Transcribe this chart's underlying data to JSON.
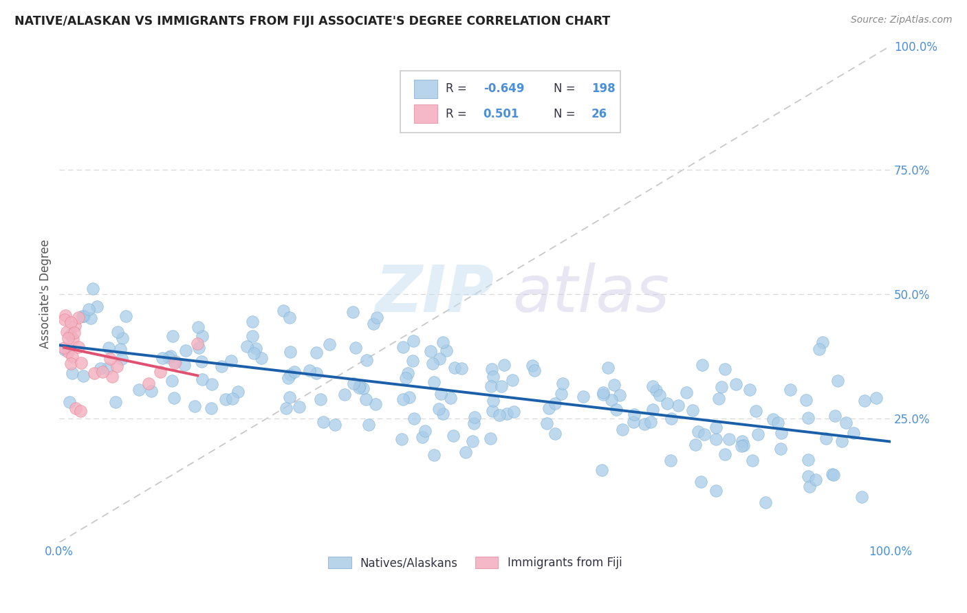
{
  "title": "NATIVE/ALASKAN VS IMMIGRANTS FROM FIJI ASSOCIATE'S DEGREE CORRELATION CHART",
  "source": "Source: ZipAtlas.com",
  "ylabel": "Associate's Degree",
  "legend_blue_r": "-0.649",
  "legend_blue_n": "198",
  "legend_pink_r": "0.501",
  "legend_pink_n": "26",
  "blue_color": "#a8cce8",
  "blue_color_edge": "#7aafd4",
  "blue_line_color": "#1a5fa8",
  "pink_color": "#f4b0c0",
  "pink_color_edge": "#e88090",
  "pink_line_color": "#e05070",
  "diagonal_color": "#c8c8c8",
  "watermark_zip": "ZIP",
  "watermark_atlas": "atlas",
  "legend_text_color": "#4a90d9",
  "title_color": "#222222",
  "source_color": "#888888",
  "ylabel_color": "#555555",
  "grid_color": "#d8d8d8",
  "xlim": [
    0.0,
    1.0
  ],
  "ylim": [
    0.0,
    1.0
  ]
}
